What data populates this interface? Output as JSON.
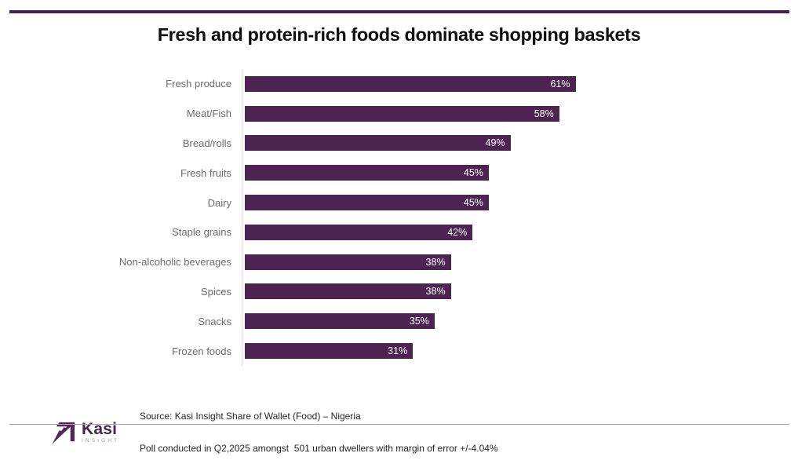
{
  "chart_data": {
    "type": "bar",
    "orientation": "horizontal",
    "title": "Fresh and protein-rich foods dominate shopping baskets",
    "categories": [
      "Fresh produce",
      "Meat/Fish",
      "Bread/rolls",
      "Fresh fruits",
      "Dairy",
      "Staple grains",
      "Non-alcoholic beverages",
      "Spices",
      "Snacks",
      "Frozen foods"
    ],
    "values": [
      61,
      58,
      49,
      45,
      45,
      42,
      38,
      38,
      35,
      31
    ],
    "value_suffix": "%",
    "xlim": [
      0,
      100
    ],
    "grid": false,
    "legend": false,
    "bar_color": "#4d2352",
    "category_label_color": "#6e6a6e",
    "value_label_color": "#ffffff",
    "axis_line_color": "#d9d9d9"
  },
  "accent": {
    "top_rule_color": "#482050",
    "bottom_rule_color": "#a6a6a6"
  },
  "footer": {
    "logo_wordmark": "Kasi",
    "logo_subtext": "INSIGHT",
    "source_line1": "Source: Kasi Insight Share of Wallet (Food) – Nigeria",
    "source_line2": "Poll conducted in Q2,2025 amongst  501 urban dwellers with margin of error +/-4.04%"
  }
}
